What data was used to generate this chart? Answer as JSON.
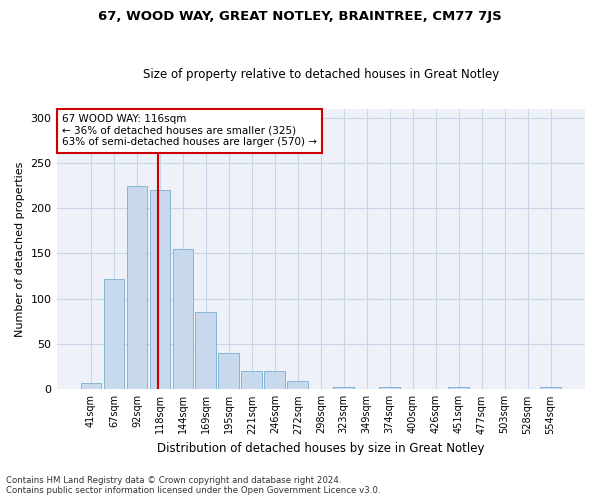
{
  "title": "67, WOOD WAY, GREAT NOTLEY, BRAINTREE, CM77 7JS",
  "subtitle": "Size of property relative to detached houses in Great Notley",
  "xlabel": "Distribution of detached houses by size in Great Notley",
  "ylabel": "Number of detached properties",
  "bin_labels": [
    "41sqm",
    "67sqm",
    "92sqm",
    "118sqm",
    "144sqm",
    "169sqm",
    "195sqm",
    "221sqm",
    "246sqm",
    "272sqm",
    "298sqm",
    "323sqm",
    "349sqm",
    "374sqm",
    "400sqm",
    "426sqm",
    "451sqm",
    "477sqm",
    "503sqm",
    "528sqm",
    "554sqm"
  ],
  "bar_values": [
    7,
    122,
    225,
    220,
    155,
    85,
    40,
    20,
    20,
    9,
    0,
    3,
    0,
    3,
    0,
    0,
    3,
    0,
    0,
    0,
    3
  ],
  "bar_color": "#c9d9ed",
  "bar_edge_color": "#7aaed0",
  "vline_color": "#cc0000",
  "annotation_text": "67 WOOD WAY: 116sqm\n← 36% of detached houses are smaller (325)\n63% of semi-detached houses are larger (570) →",
  "annotation_box_color": "#ffffff",
  "annotation_box_edge": "#cc0000",
  "ylim": [
    0,
    310
  ],
  "yticks": [
    0,
    50,
    100,
    150,
    200,
    250,
    300
  ],
  "grid_color": "#c8d4e8",
  "bg_color": "#eef2f8",
  "footer1": "Contains HM Land Registry data © Crown copyright and database right 2024.",
  "footer2": "Contains public sector information licensed under the Open Government Licence v3.0."
}
